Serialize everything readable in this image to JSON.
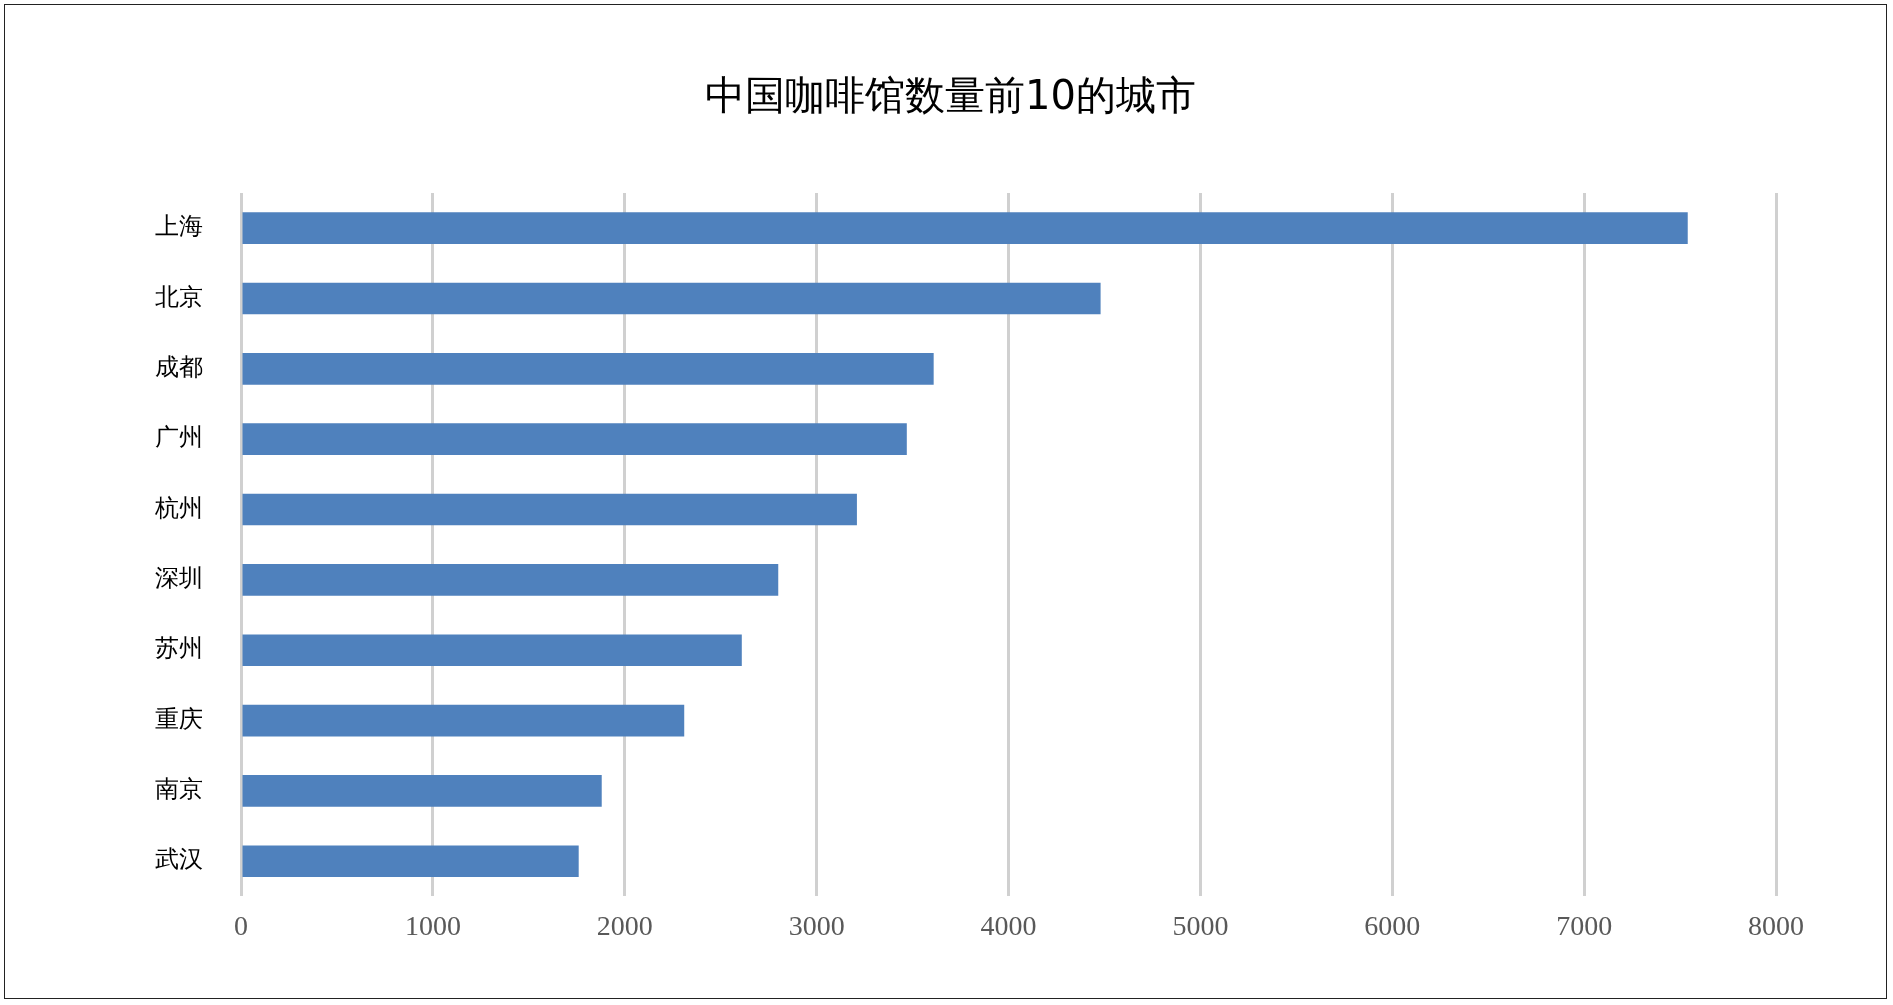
{
  "chart_data": {
    "type": "bar",
    "orientation": "horizontal",
    "title": "中国咖啡馆数量前10的城市",
    "categories": [
      "上海",
      "北京",
      "成都",
      "广州",
      "杭州",
      "深圳",
      "苏州",
      "重庆",
      "南京",
      "武汉"
    ],
    "values": [
      7540,
      4480,
      3610,
      3470,
      3210,
      2800,
      2610,
      2310,
      1880,
      1760
    ],
    "color": "#4f81bd",
    "xlim": [
      0,
      8000
    ],
    "xticks": [
      0,
      1000,
      2000,
      3000,
      4000,
      5000,
      6000,
      7000,
      8000
    ],
    "grid": "x"
  }
}
